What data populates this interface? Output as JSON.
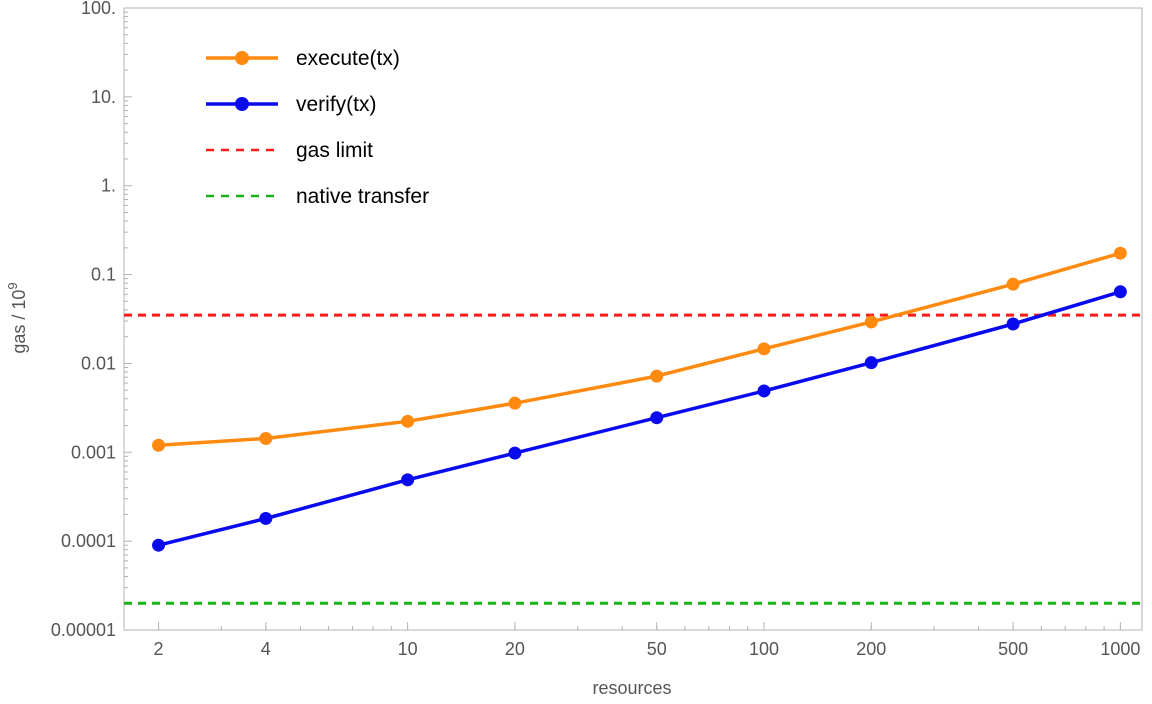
{
  "chart_data": {
    "type": "line",
    "x_scale": "log",
    "y_scale": "log",
    "xlabel": "resources",
    "ylabel": "gas / 10",
    "ylabel_superscript": "9",
    "xlim": [
      1.6,
      1150
    ],
    "ylim": [
      1e-05,
      100
    ],
    "x_ticks": [
      {
        "value": 2,
        "label": "2"
      },
      {
        "value": 4,
        "label": "4"
      },
      {
        "value": 10,
        "label": "10"
      },
      {
        "value": 20,
        "label": "20"
      },
      {
        "value": 50,
        "label": "50"
      },
      {
        "value": 100,
        "label": "100"
      },
      {
        "value": 200,
        "label": "200"
      },
      {
        "value": 500,
        "label": "500"
      },
      {
        "value": 1000,
        "label": "1000"
      }
    ],
    "y_ticks": [
      {
        "value": 100,
        "label": "100."
      },
      {
        "value": 10,
        "label": "10."
      },
      {
        "value": 1,
        "label": "1."
      },
      {
        "value": 0.1,
        "label": "0.1"
      },
      {
        "value": 0.01,
        "label": "0.01"
      },
      {
        "value": 0.001,
        "label": "0.001"
      },
      {
        "value": 0.0001,
        "label": "0.0001"
      },
      {
        "value": 1e-05,
        "label": "0.00001"
      }
    ],
    "legend_position": "top-left",
    "series": [
      {
        "name": "execute(tx)",
        "style": "line-markers",
        "color": "#ff8a0f",
        "x": [
          2,
          4,
          10,
          20,
          50,
          100,
          200,
          500,
          1000
        ],
        "y": [
          0.0012,
          0.00143,
          0.00223,
          0.00357,
          0.0072,
          0.0146,
          0.0293,
          0.078,
          0.174
        ]
      },
      {
        "name": "verify(tx)",
        "style": "line-markers",
        "color": "#0a0aef",
        "x": [
          2,
          4,
          10,
          20,
          50,
          100,
          200,
          500,
          1000
        ],
        "y": [
          9e-05,
          0.00018,
          0.00049,
          0.00098,
          0.00245,
          0.0049,
          0.0102,
          0.0278,
          0.064
        ]
      },
      {
        "name": "gas limit",
        "style": "hline-dashed",
        "color": "#ff1a1a",
        "y": 0.035
      },
      {
        "name": "native transfer",
        "style": "hline-dashed",
        "color": "#19b219",
        "y": 2e-05
      }
    ]
  }
}
